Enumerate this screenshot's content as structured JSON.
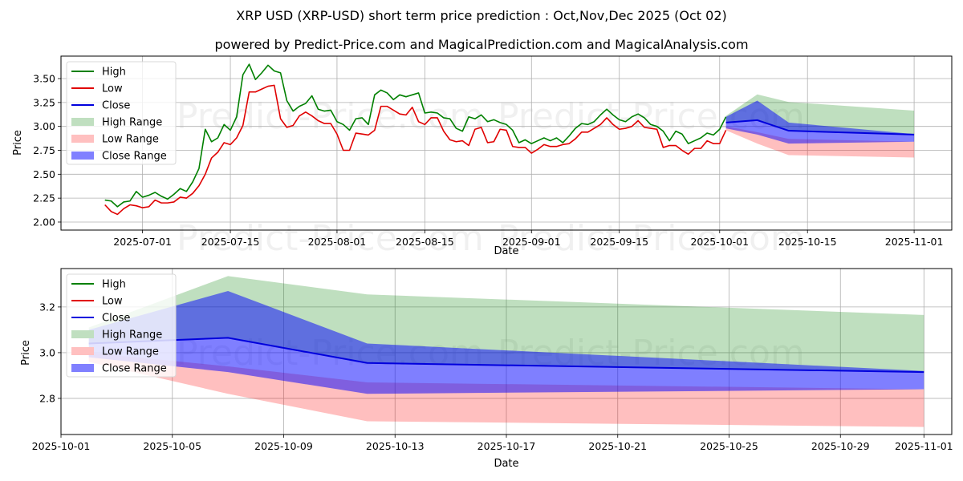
{
  "title": "XRP USD (XRP-USD) short term price prediction : Oct,Nov,Dec 2025 (Oct 02)",
  "subtitle": "powered by Predict-Price.com and MagicalPrediction.com and MagicalAnalysis.com",
  "watermark": "Predict-Price.com",
  "colors": {
    "high": "#008000",
    "low": "#e00000",
    "close": "#0000dd",
    "high_range": "#c0dfc0",
    "low_range": "#ffc0c0",
    "close_range": "#8080ff"
  },
  "legend": [
    "High",
    "Low",
    "Close",
    "High Range",
    "Low Range",
    "Close Range"
  ],
  "chart_data": [
    {
      "type": "line",
      "title": "",
      "xlabel": "Date",
      "ylabel": "Price",
      "ylim": [
        1.916,
        3.735
      ],
      "xlim": [
        "2025-06-18",
        "2025-11-07"
      ],
      "yticks": [
        "2.00",
        "2.25",
        "2.50",
        "2.75",
        "3.00",
        "3.25",
        "3.50"
      ],
      "xticks": [
        "2025-07-01",
        "2025-07-15",
        "2025-08-01",
        "2025-08-15",
        "2025-09-01",
        "2025-09-15",
        "2025-10-01",
        "2025-10-15",
        "2025-11-01"
      ],
      "grid": true,
      "legend_position": "top-left",
      "history_start": "2025-06-25",
      "series": [
        {
          "name": "High",
          "values": [
            2.23,
            2.22,
            2.16,
            2.21,
            2.22,
            2.32,
            2.26,
            2.28,
            2.31,
            2.27,
            2.24,
            2.29,
            2.35,
            2.32,
            2.42,
            2.56,
            2.97,
            2.84,
            2.88,
            3.02,
            2.96,
            3.1,
            3.54,
            3.65,
            3.49,
            3.56,
            3.64,
            3.58,
            3.56,
            3.27,
            3.16,
            3.21,
            3.24,
            3.32,
            3.18,
            3.16,
            3.17,
            3.05,
            3.02,
            2.96,
            3.08,
            3.09,
            3.02,
            3.33,
            3.38,
            3.35,
            3.28,
            3.33,
            3.31,
            3.33,
            3.35,
            3.14,
            3.15,
            3.14,
            3.09,
            3.08,
            2.98,
            2.95,
            3.1,
            3.08,
            3.12,
            3.05,
            3.07,
            3.04,
            3.02,
            2.96,
            2.83,
            2.86,
            2.82,
            2.85,
            2.88,
            2.85,
            2.88,
            2.83,
            2.9,
            2.98,
            3.03,
            3.02,
            3.05,
            3.12,
            3.18,
            3.12,
            3.07,
            3.05,
            3.1,
            3.13,
            3.09,
            3.02,
            3.0,
            2.95,
            2.85,
            2.95,
            2.92,
            2.82,
            2.85,
            2.88,
            2.93,
            2.91,
            2.97,
            3.1
          ]
        },
        {
          "name": "Low",
          "values": [
            2.18,
            2.11,
            2.08,
            2.14,
            2.18,
            2.17,
            2.15,
            2.16,
            2.23,
            2.2,
            2.2,
            2.21,
            2.26,
            2.25,
            2.3,
            2.38,
            2.5,
            2.67,
            2.73,
            2.83,
            2.81,
            2.88,
            3.01,
            3.36,
            3.36,
            3.39,
            3.42,
            3.43,
            3.08,
            2.99,
            3.01,
            3.11,
            3.15,
            3.11,
            3.06,
            3.03,
            3.03,
            2.92,
            2.75,
            2.75,
            2.93,
            2.92,
            2.91,
            2.96,
            3.21,
            3.21,
            3.17,
            3.13,
            3.12,
            3.2,
            3.05,
            3.02,
            3.09,
            3.09,
            2.95,
            2.86,
            2.84,
            2.85,
            2.8,
            2.97,
            2.99,
            2.83,
            2.84,
            2.97,
            2.96,
            2.79,
            2.78,
            2.78,
            2.72,
            2.76,
            2.81,
            2.79,
            2.79,
            2.81,
            2.82,
            2.87,
            2.94,
            2.94,
            2.98,
            3.02,
            3.09,
            3.02,
            2.97,
            2.98,
            3.0,
            3.06,
            2.99,
            2.98,
            2.97,
            2.78,
            2.8,
            2.8,
            2.75,
            2.71,
            2.77,
            2.77,
            2.85,
            2.82,
            2.82,
            2.96
          ]
        }
      ],
      "forecast": {
        "dates": [
          "2025-10-02",
          "2025-10-07",
          "2025-10-12",
          "2025-11-01"
        ],
        "close": [
          3.04,
          3.065,
          2.955,
          2.915
        ],
        "high_range": {
          "upper": [
            3.11,
            3.335,
            3.255,
            3.165
          ],
          "lower": [
            3.04,
            3.065,
            2.955,
            2.915
          ]
        },
        "close_range": {
          "upper": [
            3.1,
            3.27,
            3.04,
            2.92
          ],
          "lower": [
            2.98,
            2.915,
            2.82,
            2.84
          ]
        },
        "low_range": {
          "upper": [
            3.0,
            2.94,
            2.87,
            2.84
          ],
          "lower": [
            2.96,
            2.82,
            2.7,
            2.675
          ]
        }
      }
    },
    {
      "type": "line",
      "title": "",
      "xlabel": "Date",
      "ylabel": "Price",
      "ylim": [
        2.642,
        3.368
      ],
      "xlim": [
        "2025-10-01",
        "2025-11-02"
      ],
      "yticks": [
        "2.8",
        "3.0",
        "3.2"
      ],
      "xticks": [
        "2025-10-01",
        "2025-10-05",
        "2025-10-09",
        "2025-10-13",
        "2025-10-17",
        "2025-10-21",
        "2025-10-25",
        "2025-10-29",
        "2025-11-01"
      ],
      "grid": true,
      "legend_position": "top-left",
      "forecast_ref": "same forecast as top chart"
    }
  ]
}
